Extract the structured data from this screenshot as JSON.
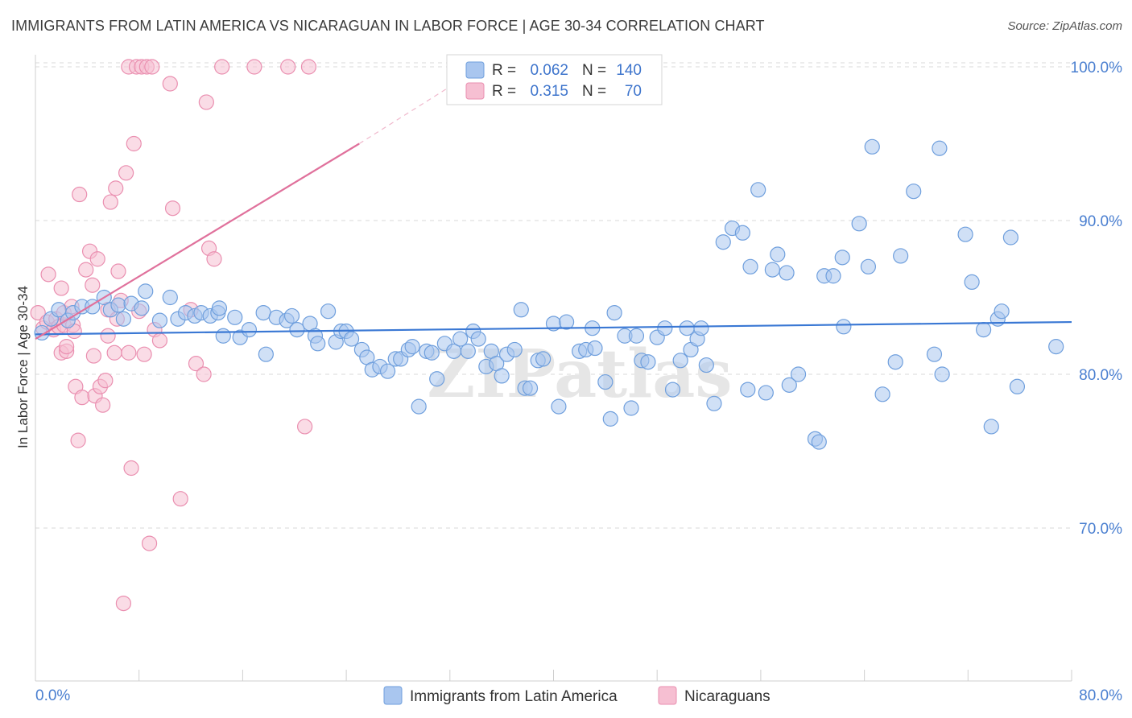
{
  "title": "IMMIGRANTS FROM LATIN AMERICA VS NICARAGUAN IN LABOR FORCE | AGE 30-34 CORRELATION CHART",
  "source": "Source: ZipAtlas.com",
  "watermark": "ZIPatlas",
  "colors": {
    "blue_fill": "#a9c6ef",
    "blue_stroke": "#6f9fdd",
    "blue_line": "#3a78d4",
    "pink_fill": "#f6bfd2",
    "pink_stroke": "#ea8fb0",
    "pink_line": "#e0719c",
    "grid": "#d9d9d9",
    "tick_text": "#4a7fd0"
  },
  "stats_box": {
    "rows": [
      {
        "r_label": "R =",
        "r_value": "0.062",
        "n_label": "N =",
        "n_value": "140"
      },
      {
        "r_label": "R =",
        "r_value": "0.315",
        "n_label": "N =",
        "n_value": "70"
      }
    ]
  },
  "legend": {
    "items": [
      {
        "label": "Immigrants from Latin America"
      },
      {
        "label": "Nicaraguans"
      }
    ]
  },
  "chart_data": {
    "type": "scatter",
    "ylabel": "In Labor Force | Age 30-34",
    "xlim": [
      0,
      80
    ],
    "ylim": [
      60,
      102
    ],
    "x_tick_labels": [
      "0.0%",
      "80.0%"
    ],
    "y_ticks": [
      70,
      80,
      90,
      100
    ],
    "y_tick_labels": [
      "70.0%",
      "80.0%",
      "90.0%",
      "100.0%"
    ],
    "grid": "horizontal dashed",
    "legend_position": "bottom",
    "series": [
      {
        "name": "Immigrants from Latin America",
        "color": "#a9c6ef",
        "trend": {
          "x": [
            0,
            80
          ],
          "y": [
            82.6,
            83.4
          ]
        },
        "points": [
          [
            0.5,
            82.7
          ],
          [
            1.2,
            83.6
          ],
          [
            1.8,
            84.2
          ],
          [
            2.5,
            83.5
          ],
          [
            2.9,
            84.0
          ],
          [
            3.6,
            84.4
          ],
          [
            4.4,
            84.4
          ],
          [
            5.3,
            85.0
          ],
          [
            5.8,
            84.2
          ],
          [
            6.4,
            84.5
          ],
          [
            6.8,
            83.6
          ],
          [
            7.4,
            84.6
          ],
          [
            8.2,
            84.3
          ],
          [
            8.5,
            85.4
          ],
          [
            9.6,
            83.5
          ],
          [
            10.4,
            85.0
          ],
          [
            11.0,
            83.6
          ],
          [
            11.6,
            84.0
          ],
          [
            12.3,
            83.8
          ],
          [
            12.8,
            84.0
          ],
          [
            13.5,
            83.8
          ],
          [
            14.1,
            84.0
          ],
          [
            14.2,
            84.3
          ],
          [
            14.5,
            82.5
          ],
          [
            15.4,
            83.7
          ],
          [
            15.8,
            82.4
          ],
          [
            16.5,
            82.9
          ],
          [
            17.6,
            84.0
          ],
          [
            17.8,
            81.3
          ],
          [
            18.6,
            83.7
          ],
          [
            19.4,
            83.5
          ],
          [
            19.8,
            83.8
          ],
          [
            20.2,
            82.9
          ],
          [
            21.2,
            83.3
          ],
          [
            21.6,
            82.5
          ],
          [
            21.8,
            82.0
          ],
          [
            22.6,
            84.1
          ],
          [
            23.2,
            82.1
          ],
          [
            23.6,
            82.8
          ],
          [
            24.0,
            82.8
          ],
          [
            24.4,
            82.3
          ],
          [
            25.2,
            81.6
          ],
          [
            25.6,
            81.1
          ],
          [
            26.0,
            80.3
          ],
          [
            26.6,
            80.5
          ],
          [
            27.2,
            80.2
          ],
          [
            27.8,
            81.0
          ],
          [
            28.2,
            81.0
          ],
          [
            28.8,
            81.6
          ],
          [
            29.1,
            81.8
          ],
          [
            29.6,
            77.9
          ],
          [
            30.2,
            81.5
          ],
          [
            30.6,
            81.4
          ],
          [
            31.0,
            79.7
          ],
          [
            31.6,
            82.0
          ],
          [
            32.3,
            81.5
          ],
          [
            32.8,
            82.3
          ],
          [
            33.4,
            81.5
          ],
          [
            33.8,
            82.8
          ],
          [
            34.2,
            82.3
          ],
          [
            34.8,
            80.5
          ],
          [
            35.2,
            81.5
          ],
          [
            35.6,
            80.7
          ],
          [
            36.0,
            79.9
          ],
          [
            36.4,
            81.3
          ],
          [
            37.0,
            81.6
          ],
          [
            37.5,
            84.2
          ],
          [
            37.8,
            79.1
          ],
          [
            38.2,
            79.1
          ],
          [
            38.8,
            80.9
          ],
          [
            39.2,
            81.0
          ],
          [
            40.0,
            83.3
          ],
          [
            40.4,
            77.9
          ],
          [
            41.0,
            83.4
          ],
          [
            42.0,
            81.5
          ],
          [
            42.5,
            81.6
          ],
          [
            43.0,
            83.0
          ],
          [
            43.2,
            81.7
          ],
          [
            44.0,
            79.5
          ],
          [
            44.4,
            77.1
          ],
          [
            44.7,
            84.0
          ],
          [
            45.5,
            82.5
          ],
          [
            46.0,
            77.8
          ],
          [
            46.4,
            82.5
          ],
          [
            46.8,
            80.9
          ],
          [
            47.3,
            80.8
          ],
          [
            48.0,
            82.4
          ],
          [
            48.6,
            83.0
          ],
          [
            49.2,
            79.0
          ],
          [
            49.8,
            80.9
          ],
          [
            50.3,
            83.0
          ],
          [
            50.6,
            81.6
          ],
          [
            51.1,
            82.3
          ],
          [
            51.4,
            83.0
          ],
          [
            51.8,
            80.6
          ],
          [
            52.4,
            78.1
          ],
          [
            53.1,
            88.6
          ],
          [
            53.8,
            89.5
          ],
          [
            54.6,
            89.2
          ],
          [
            55.0,
            79.0
          ],
          [
            55.2,
            87.0
          ],
          [
            55.8,
            92.0
          ],
          [
            56.4,
            78.8
          ],
          [
            56.9,
            86.8
          ],
          [
            57.3,
            87.8
          ],
          [
            58.0,
            86.6
          ],
          [
            58.2,
            79.3
          ],
          [
            58.9,
            80.0
          ],
          [
            60.2,
            75.8
          ],
          [
            60.5,
            75.6
          ],
          [
            60.9,
            86.4
          ],
          [
            61.6,
            86.4
          ],
          [
            62.3,
            87.6
          ],
          [
            62.4,
            83.1
          ],
          [
            63.6,
            89.8
          ],
          [
            64.3,
            87.0
          ],
          [
            64.6,
            94.8
          ],
          [
            65.4,
            78.7
          ],
          [
            66.4,
            80.8
          ],
          [
            66.8,
            87.7
          ],
          [
            67.8,
            91.9
          ],
          [
            69.4,
            81.3
          ],
          [
            69.8,
            94.7
          ],
          [
            70.0,
            80.0
          ],
          [
            71.8,
            89.1
          ],
          [
            72.3,
            86.0
          ],
          [
            73.2,
            82.9
          ],
          [
            73.8,
            76.6
          ],
          [
            74.3,
            83.6
          ],
          [
            74.6,
            84.1
          ],
          [
            75.3,
            88.9
          ],
          [
            75.8,
            79.2
          ],
          [
            78.8,
            81.8
          ]
        ]
      },
      {
        "name": "Nicaraguans",
        "color": "#f6bfd2",
        "trend": {
          "x": [
            0,
            25
          ],
          "y": [
            82.3,
            95.0
          ]
        },
        "trend_dashed": {
          "x": [
            25,
            33.5
          ],
          "y": [
            95.0,
            99.5
          ]
        },
        "points": [
          [
            0.2,
            84.0
          ],
          [
            0.6,
            83.0
          ],
          [
            0.9,
            83.4
          ],
          [
            1.0,
            86.5
          ],
          [
            1.4,
            82.9
          ],
          [
            1.6,
            83.6
          ],
          [
            1.8,
            83.1
          ],
          [
            2.0,
            81.4
          ],
          [
            2.0,
            85.6
          ],
          [
            2.2,
            83.2
          ],
          [
            2.2,
            84.0
          ],
          [
            2.4,
            81.5
          ],
          [
            2.4,
            81.8
          ],
          [
            2.8,
            84.4
          ],
          [
            2.9,
            83.2
          ],
          [
            3.0,
            82.8
          ],
          [
            3.1,
            79.2
          ],
          [
            3.3,
            75.7
          ],
          [
            3.4,
            91.7
          ],
          [
            3.6,
            78.5
          ],
          [
            3.9,
            86.8
          ],
          [
            4.2,
            88.0
          ],
          [
            4.4,
            85.8
          ],
          [
            4.5,
            81.2
          ],
          [
            4.6,
            78.6
          ],
          [
            4.8,
            87.5
          ],
          [
            5.0,
            79.2
          ],
          [
            5.2,
            78.0
          ],
          [
            5.4,
            79.6
          ],
          [
            5.6,
            84.2
          ],
          [
            5.6,
            82.5
          ],
          [
            5.8,
            91.2
          ],
          [
            6.1,
            81.4
          ],
          [
            6.2,
            92.1
          ],
          [
            6.3,
            83.6
          ],
          [
            6.4,
            86.7
          ],
          [
            6.6,
            84.8
          ],
          [
            6.8,
            65.1
          ],
          [
            7.0,
            93.1
          ],
          [
            7.2,
            81.4
          ],
          [
            7.2,
            100.0
          ],
          [
            7.4,
            73.9
          ],
          [
            7.6,
            95.0
          ],
          [
            7.8,
            100.0
          ],
          [
            8.0,
            84.1
          ],
          [
            8.2,
            100.0
          ],
          [
            8.4,
            81.3
          ],
          [
            8.6,
            100.0
          ],
          [
            8.8,
            69.0
          ],
          [
            9.0,
            100.0
          ],
          [
            9.2,
            82.9
          ],
          [
            9.6,
            82.2
          ],
          [
            10.4,
            98.9
          ],
          [
            10.6,
            90.8
          ],
          [
            11.2,
            71.9
          ],
          [
            12.0,
            84.2
          ],
          [
            12.4,
            80.7
          ],
          [
            13.0,
            80.0
          ],
          [
            13.2,
            97.7
          ],
          [
            13.4,
            88.2
          ],
          [
            13.8,
            87.5
          ],
          [
            14.4,
            100.0
          ],
          [
            16.9,
            100.0
          ],
          [
            19.5,
            100.0
          ],
          [
            20.8,
            76.6
          ],
          [
            21.1,
            100.0
          ]
        ]
      }
    ]
  }
}
